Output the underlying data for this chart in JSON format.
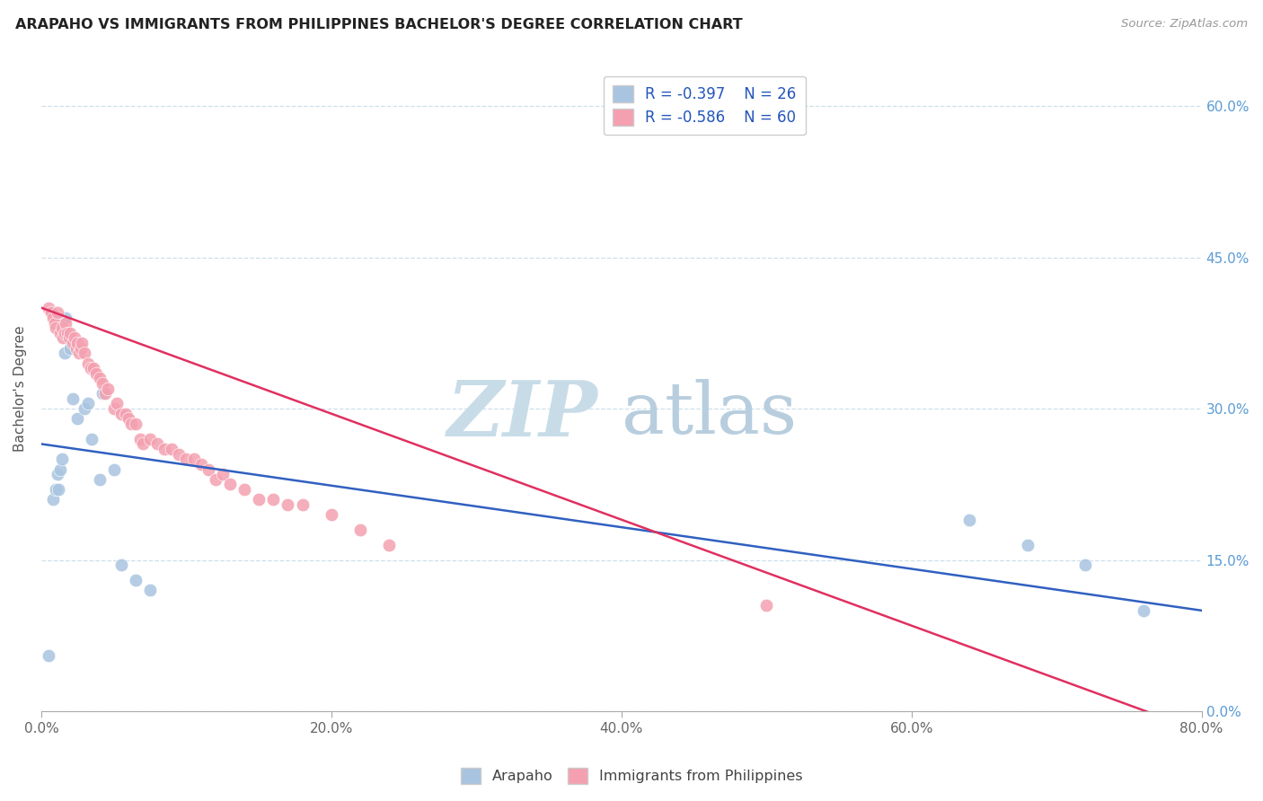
{
  "title": "ARAPAHO VS IMMIGRANTS FROM PHILIPPINES BACHELOR'S DEGREE CORRELATION CHART",
  "source": "Source: ZipAtlas.com",
  "ylabel": "Bachelor's Degree",
  "xlabel_ticks": [
    "0.0%",
    "20.0%",
    "40.0%",
    "60.0%",
    "80.0%"
  ],
  "ylabel_ticks": [
    "0.0%",
    "15.0%",
    "30.0%",
    "45.0%",
    "60.0%"
  ],
  "xlim": [
    0.0,
    0.8
  ],
  "ylim": [
    0.0,
    0.64
  ],
  "legend_r1": "R = -0.397",
  "legend_n1": "N = 26",
  "legend_r2": "R = -0.586",
  "legend_n2": "N = 60",
  "blue_color": "#a8c4e0",
  "pink_color": "#f4a0b0",
  "line_blue": "#3060c0",
  "line_pink": "#e03060",
  "arapaho_x": [
    0.005,
    0.008,
    0.01,
    0.011,
    0.012,
    0.013,
    0.014,
    0.016,
    0.017,
    0.018,
    0.02,
    0.022,
    0.025,
    0.03,
    0.032,
    0.035,
    0.04,
    0.042,
    0.05,
    0.055,
    0.065,
    0.075,
    0.64,
    0.68,
    0.72,
    0.76
  ],
  "arapaho_y": [
    0.055,
    0.21,
    0.22,
    0.235,
    0.22,
    0.24,
    0.25,
    0.355,
    0.39,
    0.37,
    0.36,
    0.31,
    0.29,
    0.3,
    0.305,
    0.27,
    0.23,
    0.315,
    0.24,
    0.145,
    0.13,
    0.12,
    0.19,
    0.165,
    0.145,
    0.1
  ],
  "philippines_x": [
    0.005,
    0.007,
    0.008,
    0.009,
    0.01,
    0.011,
    0.013,
    0.014,
    0.015,
    0.016,
    0.017,
    0.018,
    0.019,
    0.02,
    0.022,
    0.023,
    0.024,
    0.025,
    0.026,
    0.027,
    0.028,
    0.03,
    0.032,
    0.034,
    0.036,
    0.038,
    0.04,
    0.042,
    0.044,
    0.046,
    0.05,
    0.052,
    0.055,
    0.058,
    0.06,
    0.062,
    0.065,
    0.068,
    0.07,
    0.075,
    0.08,
    0.085,
    0.09,
    0.095,
    0.1,
    0.105,
    0.11,
    0.115,
    0.12,
    0.125,
    0.13,
    0.14,
    0.15,
    0.16,
    0.17,
    0.18,
    0.2,
    0.22,
    0.24,
    0.5
  ],
  "philippines_y": [
    0.4,
    0.395,
    0.39,
    0.385,
    0.38,
    0.395,
    0.375,
    0.38,
    0.37,
    0.375,
    0.385,
    0.375,
    0.37,
    0.375,
    0.365,
    0.37,
    0.36,
    0.365,
    0.355,
    0.36,
    0.365,
    0.355,
    0.345,
    0.34,
    0.34,
    0.335,
    0.33,
    0.325,
    0.315,
    0.32,
    0.3,
    0.305,
    0.295,
    0.295,
    0.29,
    0.285,
    0.285,
    0.27,
    0.265,
    0.27,
    0.265,
    0.26,
    0.26,
    0.255,
    0.25,
    0.25,
    0.245,
    0.24,
    0.23,
    0.235,
    0.225,
    0.22,
    0.21,
    0.21,
    0.205,
    0.205,
    0.195,
    0.18,
    0.165,
    0.105
  ]
}
